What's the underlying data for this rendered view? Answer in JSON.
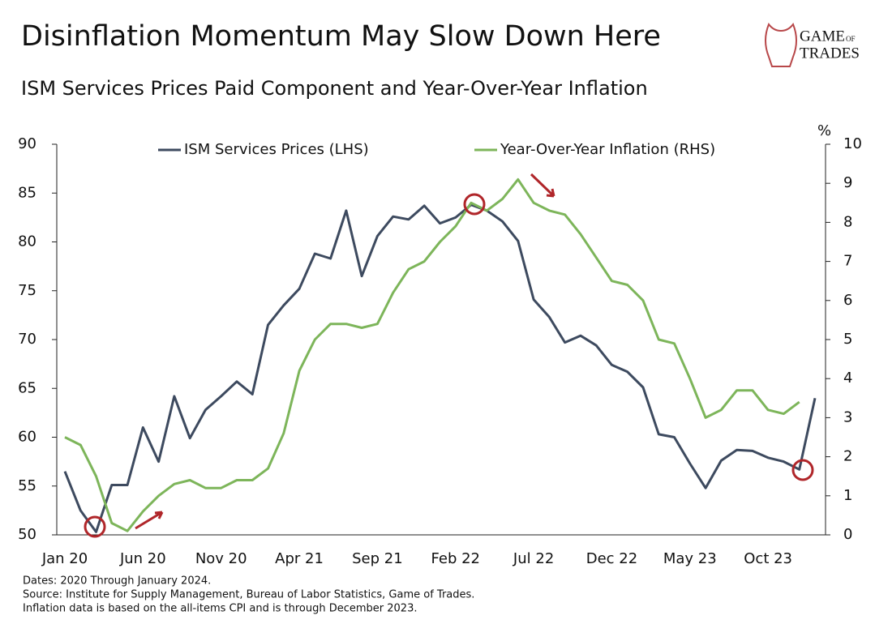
{
  "chart_data": {
    "type": "line",
    "title": "Disinflation Momentum May Slow Down Here",
    "subtitle": "ISM Services Prices Paid Component and Year-Over-Year Inflation",
    "y2_label": "%",
    "categories": [
      "Jan 20",
      null,
      null,
      null,
      null,
      "Jun 20",
      null,
      null,
      null,
      null,
      "Nov 20",
      null,
      null,
      null,
      null,
      "Apr 21",
      null,
      null,
      null,
      null,
      "Sep 21",
      null,
      null,
      null,
      null,
      "Feb 22",
      null,
      null,
      null,
      null,
      "Jul 22",
      null,
      null,
      null,
      null,
      "Dec 22",
      null,
      null,
      null,
      null,
      "May 23",
      null,
      null,
      null,
      null,
      "Oct 23",
      null,
      null,
      null
    ],
    "series": [
      {
        "name": "ISM Services Prices (LHS)",
        "color": "#3d4a5f",
        "values": [
          56.5,
          52.5,
          50.3,
          55.1,
          55.1,
          61.0,
          57.5,
          64.2,
          59.9,
          62.8,
          64.2,
          65.7,
          64.4,
          71.5,
          73.5,
          75.2,
          78.8,
          78.3,
          83.2,
          76.5,
          80.6,
          82.6,
          82.3,
          83.7,
          81.9,
          82.5,
          83.8,
          83.2,
          82.1,
          80.1,
          74.1,
          72.3,
          69.7,
          70.4,
          69.4,
          67.4,
          66.7,
          65.1,
          60.3,
          60.0,
          57.3,
          54.8,
          57.6,
          58.7,
          58.6,
          57.9,
          57.5,
          56.7,
          64.0
        ]
      },
      {
        "name": "Year-Over-Year Inflation (RHS)",
        "color": "#7db55a",
        "axis": "y2",
        "values": [
          2.5,
          2.3,
          1.5,
          0.3,
          0.1,
          0.6,
          1.0,
          1.3,
          1.4,
          1.2,
          1.2,
          1.4,
          1.4,
          1.7,
          2.6,
          4.2,
          5.0,
          5.4,
          5.4,
          5.3,
          5.4,
          6.2,
          6.8,
          7.0,
          7.5,
          7.9,
          8.5,
          8.3,
          8.6,
          9.1,
          8.5,
          8.3,
          8.2,
          7.7,
          7.1,
          6.5,
          6.4,
          6.0,
          5.0,
          4.9,
          4.0,
          3.0,
          3.2,
          3.7,
          3.7,
          3.2,
          3.1,
          3.4,
          null
        ]
      }
    ],
    "ylim": [
      50,
      90
    ],
    "yticks": [
      50,
      55,
      60,
      65,
      70,
      75,
      80,
      85,
      90
    ],
    "y2lim": [
      0,
      10
    ],
    "y2ticks": [
      0,
      1,
      2,
      3,
      4,
      5,
      6,
      7,
      8,
      9,
      10
    ],
    "legend": "top",
    "grid": false
  },
  "notes": [
    "Dates: 2020 Through January 2024.",
    "Source: Institute for Supply Management, Bureau of Labor Statistics, Game of Trades.",
    "Inflation data is based on the all-items CPI and is through December 2023."
  ],
  "logo": {
    "top": "GAME",
    "small": "OF",
    "bottom": "TRADES"
  }
}
